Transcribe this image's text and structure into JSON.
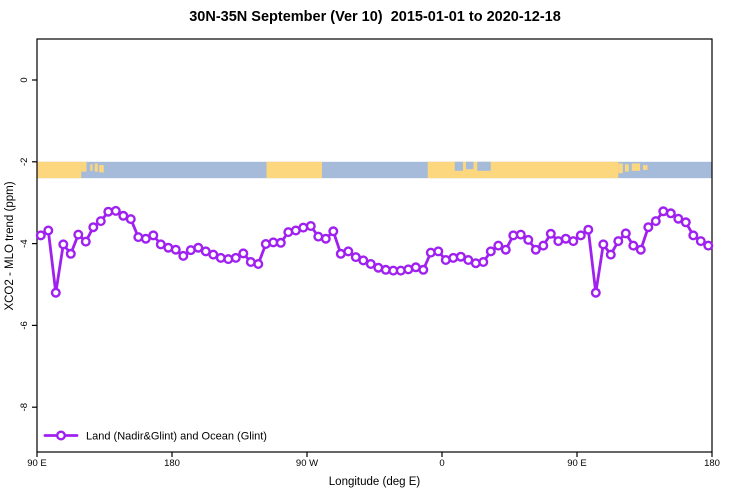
{
  "chart_data": {
    "type": "line",
    "title": "30N-35N September (Ver 10)  2015-01-01 to 2020-12-18",
    "xlabel": "Longitude (deg E)",
    "ylabel": "XCO2 - MLO trend (ppm)",
    "xlim": [
      90,
      540
    ],
    "ylim": [
      -9.1,
      1.0
    ],
    "grid": false,
    "xticks": [
      {
        "pos": 90,
        "label": "90 E"
      },
      {
        "pos": 180,
        "label": "180"
      },
      {
        "pos": 270,
        "label": "90 W"
      },
      {
        "pos": 360,
        "label": "0"
      },
      {
        "pos": 450,
        "label": "90 E"
      },
      {
        "pos": 540,
        "label": "180"
      }
    ],
    "yticks": [
      {
        "pos": 0,
        "label": "0"
      },
      {
        "pos": -2,
        "label": "-2"
      },
      {
        "pos": -4,
        "label": "-4"
      },
      {
        "pos": -6,
        "label": "-6"
      },
      {
        "pos": -8,
        "label": "-8"
      }
    ],
    "legend": {
      "position": "bottom-left",
      "entries": [
        {
          "label": "Land (Nadir&Glint) and Ocean (Glint)",
          "color": "#A020F0",
          "marker": "open-circle-on-line"
        }
      ]
    },
    "series": [
      {
        "name": "Land (Nadir&Glint) and Ocean (Glint)",
        "color": "#A020F0",
        "marker_fill": "#FFFFFF",
        "x": [
          92.5,
          97.5,
          102.5,
          107.5,
          112.5,
          117.5,
          122.5,
          127.5,
          132.5,
          137.5,
          142.5,
          147.5,
          152.5,
          157.5,
          162.5,
          167.5,
          172.5,
          177.5,
          182.5,
          187.5,
          192.5,
          197.5,
          202.5,
          207.5,
          212.5,
          217.5,
          222.5,
          227.5,
          232.5,
          237.5,
          242.5,
          247.5,
          252.5,
          257.5,
          262.5,
          267.5,
          272.5,
          277.5,
          282.5,
          287.5,
          292.5,
          297.5,
          302.5,
          307.5,
          312.5,
          317.5,
          322.5,
          327.5,
          332.5,
          337.5,
          342.5,
          347.5,
          352.5,
          357.5,
          362.5,
          367.5,
          372.5,
          377.5,
          382.5,
          387.5,
          392.5,
          397.5,
          402.5,
          407.5,
          412.5,
          417.5,
          422.5,
          427.5,
          432.5,
          437.5,
          442.5,
          447.5,
          452.5,
          457.5,
          462.5,
          467.5,
          472.5,
          477.5,
          482.5,
          487.5,
          492.5,
          497.5,
          502.5,
          507.5,
          512.5,
          517.5,
          522.5,
          527.5,
          532.5,
          537.5
        ],
        "y": [
          -3.8,
          -3.68,
          -5.2,
          -4.02,
          -4.25,
          -3.78,
          -3.95,
          -3.6,
          -3.45,
          -3.22,
          -3.2,
          -3.32,
          -3.4,
          -3.84,
          -3.88,
          -3.8,
          -4.02,
          -4.1,
          -4.15,
          -4.3,
          -4.16,
          -4.1,
          -4.19,
          -4.27,
          -4.35,
          -4.38,
          -4.35,
          -4.24,
          -4.45,
          -4.5,
          -4.01,
          -3.97,
          -3.98,
          -3.72,
          -3.68,
          -3.61,
          -3.57,
          -3.83,
          -3.88,
          -3.7,
          -4.25,
          -4.19,
          -4.33,
          -4.41,
          -4.5,
          -4.59,
          -4.64,
          -4.66,
          -4.66,
          -4.63,
          -4.58,
          -4.64,
          -4.22,
          -4.19,
          -4.4,
          -4.35,
          -4.32,
          -4.4,
          -4.48,
          -4.45,
          -4.19,
          -4.05,
          -4.15,
          -3.8,
          -3.78,
          -3.91,
          -4.15,
          -4.05,
          -3.76,
          -3.94,
          -3.88,
          -3.94,
          -3.8,
          -3.66,
          -5.2,
          -4.02,
          -4.27,
          -3.94,
          -3.75,
          -4.05,
          -4.15,
          -3.6,
          -3.45,
          -3.21,
          -3.26,
          -3.39,
          -3.48,
          -3.8,
          -3.94,
          -4.05
        ]
      }
    ],
    "map_strip": {
      "v_top": -2.0,
      "v_bottom": -2.4,
      "ocean_color": "#A6BBD9",
      "land_color": "#FCD77E",
      "land_segments": [
        {
          "from": 90,
          "to": 119.5,
          "top": 0,
          "bottom": 1
        },
        {
          "from": 119.5,
          "to": 123,
          "top": 0,
          "bottom": 0.6
        },
        {
          "from": 125.5,
          "to": 127,
          "top": 0.15,
          "bottom": 0.55
        },
        {
          "from": 128.5,
          "to": 130.5,
          "top": 0.1,
          "bottom": 0.6
        },
        {
          "from": 131.5,
          "to": 134.5,
          "top": 0.2,
          "bottom": 0.65
        },
        {
          "from": 243,
          "to": 280,
          "top": 0,
          "bottom": 1
        },
        {
          "from": 350.5,
          "to": 477.5,
          "top": 0,
          "bottom": 1
        },
        {
          "from": 477.5,
          "to": 480.5,
          "top": 0.1,
          "bottom": 0.7
        },
        {
          "from": 482,
          "to": 484.5,
          "top": 0.15,
          "bottom": 0.6
        },
        {
          "from": 486.5,
          "to": 492,
          "top": 0.1,
          "bottom": 0.55
        },
        {
          "from": 494,
          "to": 497,
          "top": 0.2,
          "bottom": 0.5
        }
      ],
      "ocean_notches": [
        {
          "from": 368.5,
          "to": 374,
          "top": 0,
          "bottom": 0.55
        },
        {
          "from": 376,
          "to": 381,
          "top": 0,
          "bottom": 0.45
        },
        {
          "from": 383.5,
          "to": 392.5,
          "top": 0,
          "bottom": 0.55
        }
      ]
    },
    "axis_color": "#000000"
  }
}
